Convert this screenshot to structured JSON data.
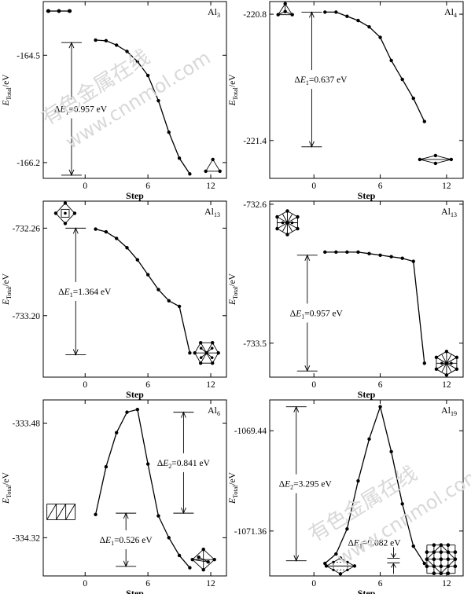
{
  "figure": {
    "watermark_cn": "有色金属在线",
    "watermark_url": "www.cnnmol.com"
  },
  "chart_data": [
    {
      "type": "line",
      "label": "Al3",
      "label_base": "Al",
      "label_sub": "3",
      "xlabel": "Step",
      "ylabel": "E_Total/eV",
      "xticks": [
        0,
        6,
        12
      ],
      "yticks": [
        -164.5,
        -166.2
      ],
      "yticklabels": [
        "-164.5",
        "-166.2"
      ],
      "xlim": [
        -4,
        13.5
      ],
      "ylim": [
        -166.45,
        -163.65
      ],
      "x": [
        1,
        2,
        3,
        4,
        5,
        6,
        7,
        8,
        9,
        10
      ],
      "y": [
        -164.26,
        -164.27,
        -164.34,
        -164.44,
        -164.6,
        -164.82,
        -165.22,
        -165.72,
        -166.13,
        -166.38
      ],
      "extra_points": [
        {
          "x": -3.5,
          "y": -163.8
        },
        {
          "x": -2.5,
          "y": -163.8
        },
        {
          "x": -1.5,
          "y": -163.8
        }
      ],
      "annotations": [
        {
          "text": "ΔE1=0.957 eV",
          "base": "ΔE",
          "sub": "1",
          "value": "=0.957 eV",
          "y_top": -164.3,
          "y_bottom": -166.4,
          "x": -1.3
        }
      ],
      "clusters": [
        {
          "name": "al3-start-chain-icon",
          "x": -2.5,
          "y": -163.8
        },
        {
          "name": "al3-triangle-icon",
          "x": 12.2,
          "y": -166.25
        }
      ]
    },
    {
      "type": "line",
      "label": "Al4",
      "label_base": "Al",
      "label_sub": "4",
      "xlabel": "Step",
      "ylabel": "E_Total/eV",
      "xticks": [
        0,
        6,
        12
      ],
      "yticks": [
        -220.8,
        -221.4
      ],
      "yticklabels": [
        "-220.8",
        "-221.4"
      ],
      "xlim": [
        -4,
        13.5
      ],
      "ylim": [
        -221.58,
        -220.74
      ],
      "x": [
        1,
        2,
        3,
        4,
        5,
        6,
        7,
        8,
        9,
        10
      ],
      "y": [
        -220.79,
        -220.79,
        -220.81,
        -220.83,
        -220.86,
        -220.91,
        -221.02,
        -221.11,
        -221.2,
        -221.31
      ],
      "annotations": [
        {
          "text": "ΔE1=0.637 eV",
          "base": "ΔE",
          "sub": "1",
          "value": "=0.637 eV",
          "y_top": -220.79,
          "y_bottom": -221.43,
          "x": -0.2
        }
      ],
      "clusters": [
        {
          "name": "al4-start-cluster-icon",
          "x": -2.6,
          "y": -220.78
        },
        {
          "name": "al4-rhombus-icon",
          "x": 11,
          "y": -221.49
        }
      ]
    },
    {
      "type": "line",
      "label": "Al13",
      "label_base": "Al",
      "label_sub": "13",
      "xlabel": "Step",
      "ylabel": "E_Total/eV",
      "xticks": [
        0,
        6,
        12
      ],
      "yticks": [
        -732.26,
        -733.2
      ],
      "yticklabels": [
        "-732.26",
        "-733.20"
      ],
      "xlim": [
        -4,
        13.5
      ],
      "ylim": [
        -733.86,
        -731.97
      ],
      "x": [
        1,
        2,
        3,
        4,
        5,
        6,
        7,
        8,
        9,
        10
      ],
      "y": [
        -732.27,
        -732.3,
        -732.37,
        -732.47,
        -732.6,
        -732.76,
        -732.92,
        -733.04,
        -733.1,
        -733.6
      ],
      "annotations": [
        {
          "text": "ΔE1=1.364 eV",
          "base": "ΔE",
          "sub": "1",
          "value": "=1.364 eV",
          "y_top": -732.26,
          "y_bottom": -733.62,
          "x": -0.9
        }
      ],
      "clusters": [
        {
          "name": "al13-start-cluster-icon",
          "x": -1.9,
          "y": -732.1
        },
        {
          "name": "al13-icosahedron-icon",
          "x": 11.6,
          "y": -733.6
        }
      ]
    },
    {
      "type": "line",
      "label": "Al13",
      "label_base": "Al",
      "label_sub": "13",
      "xlabel": "Step",
      "ylabel": "E_Total/eV",
      "xticks": [
        0,
        6,
        12
      ],
      "yticks": [
        -732.6,
        -733.5
      ],
      "yticklabels": [
        "-732.6",
        "-733.5"
      ],
      "xlim": [
        -4,
        13.5
      ],
      "ylim": [
        -733.72,
        -732.58
      ],
      "x": [
        1,
        2,
        3,
        4,
        5,
        6,
        7,
        8,
        9,
        10
      ],
      "y": [
        -732.91,
        -732.91,
        -732.91,
        -732.91,
        -732.92,
        -732.93,
        -732.94,
        -732.95,
        -732.97,
        -733.63
      ],
      "annotations": [
        {
          "text": "ΔE1=0.957 eV",
          "base": "ΔE",
          "sub": "1",
          "value": "=0.957 eV",
          "y_top": -732.93,
          "y_bottom": -733.68,
          "x": -0.6
        }
      ],
      "clusters": [
        {
          "name": "al13-start-cuboct-icon",
          "x": -2.4,
          "y": -732.72
        },
        {
          "name": "al13-final-cluster-icon",
          "x": 12,
          "y": -733.63
        }
      ]
    },
    {
      "type": "line",
      "label": "Al6",
      "label_base": "Al",
      "label_sub": "6",
      "xlabel": "Step",
      "ylabel": "E_Total/eV",
      "xticks": [
        0,
        6,
        12
      ],
      "yticks": [
        -333.48,
        -334.32
      ],
      "yticklabels": [
        "-333.48",
        "-334.32"
      ],
      "xlim": [
        -4,
        13.5
      ],
      "ylim": [
        -334.6,
        -333.31
      ],
      "x": [
        1,
        2,
        3,
        4,
        5,
        6,
        7,
        8,
        9,
        10
      ],
      "y": [
        -334.15,
        -333.8,
        -333.55,
        -333.4,
        -333.38,
        -333.78,
        -334.16,
        -334.32,
        -334.45,
        -334.54
      ],
      "annotations": [
        {
          "text": "ΔE1=0.526 eV",
          "base": "ΔE",
          "sub": "1",
          "value": "=0.526 eV",
          "y_top": -334.14,
          "y_bottom": -334.53,
          "x": 3.9
        },
        {
          "text": "ΔE2=0.841 eV",
          "base": "ΔE",
          "sub": "2",
          "value": "=0.841 eV",
          "y_top": -333.4,
          "y_bottom": -334.14,
          "x": 9.4
        }
      ],
      "clusters": [
        {
          "name": "al6-start-ladder-icon",
          "x": -2.3,
          "y": -334.13
        },
        {
          "name": "al6-octahedron-icon",
          "x": 11.3,
          "y": -334.48
        }
      ]
    },
    {
      "type": "line",
      "label": "Al19",
      "label_base": "Al",
      "label_sub": "19",
      "xlabel": "Step",
      "ylabel": "E_Total/eV",
      "xticks": [
        0,
        6,
        12
      ],
      "yticks": [
        -1069.44,
        -1071.36
      ],
      "yticklabels": [
        "-1069.44",
        "-1071.36"
      ],
      "xlim": [
        -4,
        13.5
      ],
      "ylim": [
        -1072.22,
        -1068.85
      ],
      "x": [
        1,
        2,
        3,
        4,
        5,
        6,
        7,
        8,
        9,
        10
      ],
      "y": [
        -1071.98,
        -1071.8,
        -1071.32,
        -1070.4,
        -1069.6,
        -1068.98,
        -1069.84,
        -1070.84,
        -1071.65,
        -1071.98
      ],
      "annotations": [
        {
          "text": "ΔE2=3.295 eV",
          "base": "ΔE",
          "sub": "2",
          "value": "=3.295 eV",
          "y_top": -1068.98,
          "y_bottom": -1071.93,
          "x": -1.6
        },
        {
          "text": "ΔE1=0.082 eV",
          "base": "ΔE",
          "sub": "1",
          "value": "=0.082 eV",
          "y_top": -1071.88,
          "y_bottom": -1071.97,
          "x": 7.2
        }
      ],
      "clusters": [
        {
          "name": "al19-start-cluster-icon",
          "x": 2.4,
          "y": -1072.03
        },
        {
          "name": "al19-double-icosahedron-icon",
          "x": 11.5,
          "y": -1071.9
        }
      ]
    }
  ]
}
